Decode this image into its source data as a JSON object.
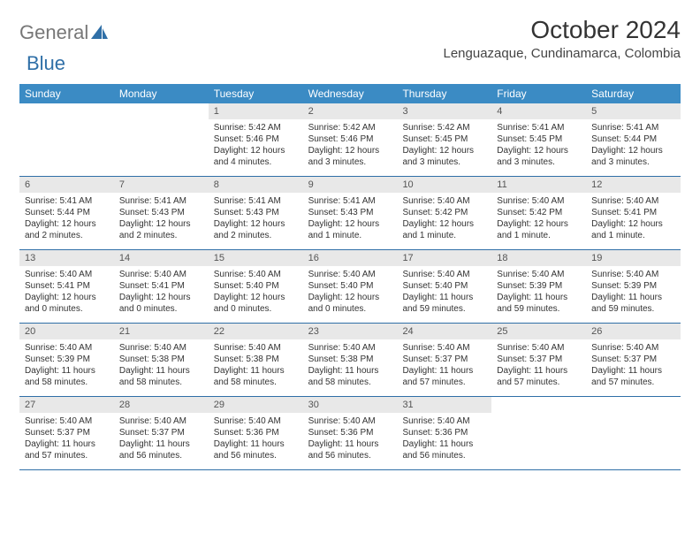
{
  "brand": {
    "part1": "General",
    "part2": "Blue"
  },
  "title": "October 2024",
  "location": "Lenguazaque, Cundinamarca, Colombia",
  "colors": {
    "header_bg": "#3b8bc4",
    "header_text": "#ffffff",
    "daynum_bg": "#e8e8e8",
    "border": "#2f6fa7",
    "text": "#333333",
    "logo_gray": "#777777",
    "logo_blue": "#2f6fa7",
    "background": "#ffffff"
  },
  "weekdays": [
    "Sunday",
    "Monday",
    "Tuesday",
    "Wednesday",
    "Thursday",
    "Friday",
    "Saturday"
  ],
  "weeks": [
    [
      null,
      null,
      {
        "n": "1",
        "sunrise": "5:42 AM",
        "sunset": "5:46 PM",
        "daylight": "12 hours and 4 minutes."
      },
      {
        "n": "2",
        "sunrise": "5:42 AM",
        "sunset": "5:46 PM",
        "daylight": "12 hours and 3 minutes."
      },
      {
        "n": "3",
        "sunrise": "5:42 AM",
        "sunset": "5:45 PM",
        "daylight": "12 hours and 3 minutes."
      },
      {
        "n": "4",
        "sunrise": "5:41 AM",
        "sunset": "5:45 PM",
        "daylight": "12 hours and 3 minutes."
      },
      {
        "n": "5",
        "sunrise": "5:41 AM",
        "sunset": "5:44 PM",
        "daylight": "12 hours and 3 minutes."
      }
    ],
    [
      {
        "n": "6",
        "sunrise": "5:41 AM",
        "sunset": "5:44 PM",
        "daylight": "12 hours and 2 minutes."
      },
      {
        "n": "7",
        "sunrise": "5:41 AM",
        "sunset": "5:43 PM",
        "daylight": "12 hours and 2 minutes."
      },
      {
        "n": "8",
        "sunrise": "5:41 AM",
        "sunset": "5:43 PM",
        "daylight": "12 hours and 2 minutes."
      },
      {
        "n": "9",
        "sunrise": "5:41 AM",
        "sunset": "5:43 PM",
        "daylight": "12 hours and 1 minute."
      },
      {
        "n": "10",
        "sunrise": "5:40 AM",
        "sunset": "5:42 PM",
        "daylight": "12 hours and 1 minute."
      },
      {
        "n": "11",
        "sunrise": "5:40 AM",
        "sunset": "5:42 PM",
        "daylight": "12 hours and 1 minute."
      },
      {
        "n": "12",
        "sunrise": "5:40 AM",
        "sunset": "5:41 PM",
        "daylight": "12 hours and 1 minute."
      }
    ],
    [
      {
        "n": "13",
        "sunrise": "5:40 AM",
        "sunset": "5:41 PM",
        "daylight": "12 hours and 0 minutes."
      },
      {
        "n": "14",
        "sunrise": "5:40 AM",
        "sunset": "5:41 PM",
        "daylight": "12 hours and 0 minutes."
      },
      {
        "n": "15",
        "sunrise": "5:40 AM",
        "sunset": "5:40 PM",
        "daylight": "12 hours and 0 minutes."
      },
      {
        "n": "16",
        "sunrise": "5:40 AM",
        "sunset": "5:40 PM",
        "daylight": "12 hours and 0 minutes."
      },
      {
        "n": "17",
        "sunrise": "5:40 AM",
        "sunset": "5:40 PM",
        "daylight": "11 hours and 59 minutes."
      },
      {
        "n": "18",
        "sunrise": "5:40 AM",
        "sunset": "5:39 PM",
        "daylight": "11 hours and 59 minutes."
      },
      {
        "n": "19",
        "sunrise": "5:40 AM",
        "sunset": "5:39 PM",
        "daylight": "11 hours and 59 minutes."
      }
    ],
    [
      {
        "n": "20",
        "sunrise": "5:40 AM",
        "sunset": "5:39 PM",
        "daylight": "11 hours and 58 minutes."
      },
      {
        "n": "21",
        "sunrise": "5:40 AM",
        "sunset": "5:38 PM",
        "daylight": "11 hours and 58 minutes."
      },
      {
        "n": "22",
        "sunrise": "5:40 AM",
        "sunset": "5:38 PM",
        "daylight": "11 hours and 58 minutes."
      },
      {
        "n": "23",
        "sunrise": "5:40 AM",
        "sunset": "5:38 PM",
        "daylight": "11 hours and 58 minutes."
      },
      {
        "n": "24",
        "sunrise": "5:40 AM",
        "sunset": "5:37 PM",
        "daylight": "11 hours and 57 minutes."
      },
      {
        "n": "25",
        "sunrise": "5:40 AM",
        "sunset": "5:37 PM",
        "daylight": "11 hours and 57 minutes."
      },
      {
        "n": "26",
        "sunrise": "5:40 AM",
        "sunset": "5:37 PM",
        "daylight": "11 hours and 57 minutes."
      }
    ],
    [
      {
        "n": "27",
        "sunrise": "5:40 AM",
        "sunset": "5:37 PM",
        "daylight": "11 hours and 57 minutes."
      },
      {
        "n": "28",
        "sunrise": "5:40 AM",
        "sunset": "5:37 PM",
        "daylight": "11 hours and 56 minutes."
      },
      {
        "n": "29",
        "sunrise": "5:40 AM",
        "sunset": "5:36 PM",
        "daylight": "11 hours and 56 minutes."
      },
      {
        "n": "30",
        "sunrise": "5:40 AM",
        "sunset": "5:36 PM",
        "daylight": "11 hours and 56 minutes."
      },
      {
        "n": "31",
        "sunrise": "5:40 AM",
        "sunset": "5:36 PM",
        "daylight": "11 hours and 56 minutes."
      },
      null,
      null
    ]
  ],
  "labels": {
    "sunrise": "Sunrise:",
    "sunset": "Sunset:",
    "daylight": "Daylight:"
  }
}
